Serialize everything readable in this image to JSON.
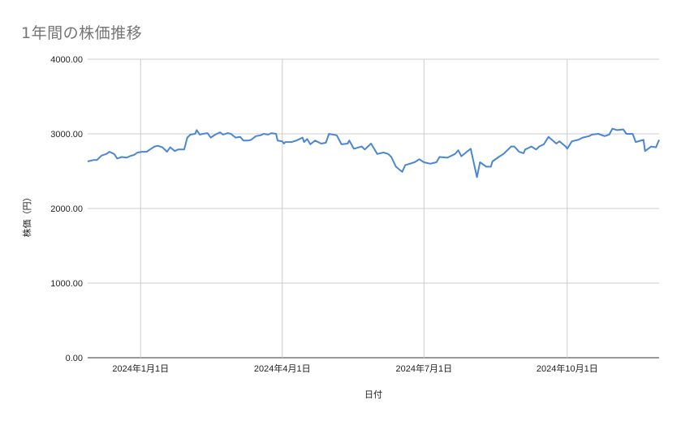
{
  "chart_data": {
    "type": "line",
    "title": "1年間の株価推移",
    "xlabel": "日付",
    "ylabel": "株価（円）",
    "ylim": [
      0,
      4000
    ],
    "xlim": [
      "2023-11-28",
      "2024-11-29"
    ],
    "y_ticks": [
      "0.00",
      "1000.00",
      "2000.00",
      "3000.00",
      "4000.00"
    ],
    "x_ticks": [
      {
        "date": "2024-01-01",
        "label": "2024年1月1日"
      },
      {
        "date": "2024-04-01",
        "label": "2024年4月1日"
      },
      {
        "date": "2024-07-01",
        "label": "2024年7月1日"
      },
      {
        "date": "2024-10-01",
        "label": "2024年10月1日"
      }
    ],
    "grid": true,
    "legend": "none",
    "line_color": "#4a86d4",
    "series": [
      {
        "x": [
          "2023-11-28",
          "2023-12-02",
          "2023-12-04",
          "2023-12-07",
          "2023-12-10",
          "2023-12-12",
          "2023-12-15",
          "2023-12-17",
          "2023-12-20",
          "2023-12-23",
          "2023-12-25",
          "2023-12-28",
          "2023-12-30",
          "2024-01-02",
          "2024-01-05",
          "2024-01-07",
          "2024-01-10",
          "2024-01-12",
          "2024-01-15",
          "2024-01-18",
          "2024-01-20",
          "2024-01-23",
          "2024-01-25",
          "2024-01-29",
          "2024-01-31",
          "2024-02-02",
          "2024-02-05",
          "2024-02-06",
          "2024-02-08",
          "2024-02-10",
          "2024-02-13",
          "2024-02-15",
          "2024-02-18",
          "2024-02-21",
          "2024-02-23",
          "2024-02-26",
          "2024-02-28",
          "2024-03-02",
          "2024-03-05",
          "2024-03-07",
          "2024-03-10",
          "2024-03-12",
          "2024-03-15",
          "2024-03-18",
          "2024-03-20",
          "2024-03-23",
          "2024-03-25",
          "2024-03-28",
          "2024-03-29",
          "2024-04-01",
          "2024-04-02",
          "2024-04-03",
          "2024-04-07",
          "2024-04-10",
          "2024-04-14",
          "2024-04-15",
          "2024-04-17",
          "2024-04-19",
          "2024-04-22",
          "2024-04-26",
          "2024-04-29",
          "2024-05-01",
          "2024-05-06",
          "2024-05-09",
          "2024-05-13",
          "2024-05-14",
          "2024-05-17",
          "2024-05-22",
          "2024-05-24",
          "2024-05-28",
          "2024-06-01",
          "2024-06-05",
          "2024-06-08",
          "2024-06-10",
          "2024-06-13",
          "2024-06-17",
          "2024-06-19",
          "2024-06-25",
          "2024-06-28",
          "2024-07-01",
          "2024-07-05",
          "2024-07-09",
          "2024-07-11",
          "2024-07-16",
          "2024-07-21",
          "2024-07-23",
          "2024-07-25",
          "2024-07-28",
          "2024-07-31",
          "2024-08-04",
          "2024-08-06",
          "2024-08-10",
          "2024-08-13",
          "2024-08-14",
          "2024-08-18",
          "2024-08-21",
          "2024-08-26",
          "2024-08-28",
          "2024-08-31",
          "2024-09-03",
          "2024-09-04",
          "2024-09-08",
          "2024-09-11",
          "2024-09-13",
          "2024-09-16",
          "2024-09-19",
          "2024-09-24",
          "2024-09-26",
          "2024-09-30",
          "2024-10-01",
          "2024-10-04",
          "2024-10-08",
          "2024-10-11",
          "2024-10-15",
          "2024-10-17",
          "2024-10-21",
          "2024-10-25",
          "2024-10-28",
          "2024-10-30",
          "2024-11-02",
          "2024-11-06",
          "2024-11-08",
          "2024-11-12",
          "2024-11-14",
          "2024-11-19",
          "2024-11-20",
          "2024-11-24",
          "2024-11-27",
          "2024-11-29"
        ],
        "values": [
          2630,
          2650,
          2650,
          2710,
          2730,
          2760,
          2730,
          2670,
          2690,
          2680,
          2700,
          2720,
          2750,
          2760,
          2760,
          2790,
          2830,
          2840,
          2820,
          2760,
          2820,
          2770,
          2790,
          2790,
          2950,
          2990,
          3000,
          3050,
          2990,
          3000,
          3010,
          2950,
          2990,
          3020,
          2990,
          3010,
          3000,
          2950,
          2960,
          2910,
          2910,
          2920,
          2970,
          2980,
          3000,
          2990,
          3010,
          3000,
          2910,
          2900,
          2870,
          2890,
          2890,
          2910,
          2950,
          2890,
          2930,
          2860,
          2910,
          2870,
          2880,
          3000,
          2980,
          2860,
          2870,
          2910,
          2800,
          2830,
          2790,
          2870,
          2730,
          2750,
          2730,
          2690,
          2560,
          2490,
          2580,
          2620,
          2660,
          2620,
          2600,
          2620,
          2690,
          2680,
          2730,
          2780,
          2700,
          2750,
          2800,
          2420,
          2620,
          2560,
          2560,
          2630,
          2690,
          2730,
          2830,
          2830,
          2760,
          2740,
          2790,
          2830,
          2790,
          2830,
          2860,
          2960,
          2870,
          2900,
          2830,
          2800,
          2900,
          2920,
          2950,
          2970,
          2990,
          3000,
          2970,
          2990,
          3070,
          3050,
          3060,
          3000,
          3000,
          2890,
          2920,
          2770,
          2830,
          2820,
          2920
        ]
      }
    ]
  }
}
